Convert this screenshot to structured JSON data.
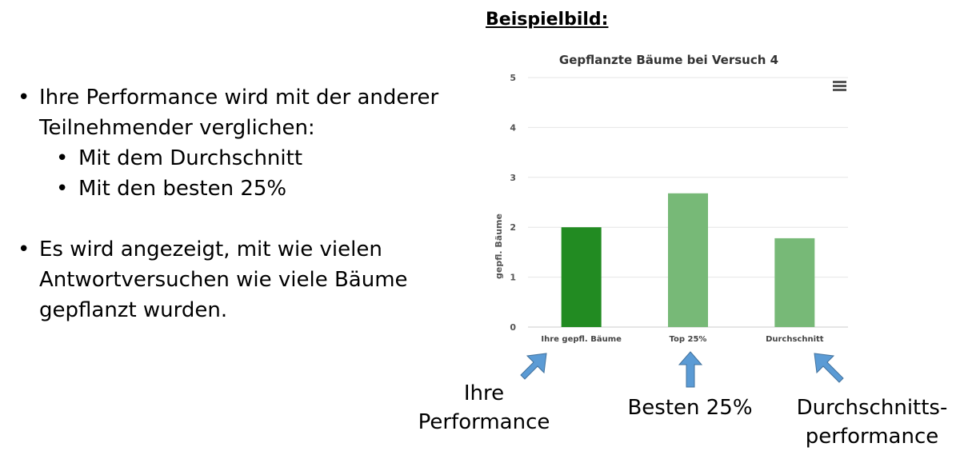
{
  "bullets": {
    "b1_line1": "Ihre Performance wird mit der anderer",
    "b1_line2": "Teilnehmender verglichen:",
    "sub1": "Mit dem Durchschnitt",
    "sub2": "Mit den besten 25%",
    "b2_line1": "Es wird angezeigt, mit wie vielen",
    "b2_line2": "Antwortversuchen wie viele Bäume",
    "b2_line3": "gepflanzt wurden.",
    "dot": "•"
  },
  "heading": "Beispielbild:",
  "chart_data": {
    "type": "bar",
    "title": "Gepflanzte Bäume bei Versuch 4",
    "ylabel": "gepfl. Bäume",
    "xlabel": "",
    "categories": [
      "Ihre gepfl. Bäume",
      "Top 25%",
      "Durchschnitt"
    ],
    "values": [
      2,
      2.68,
      1.78
    ],
    "colors": [
      "#228b22",
      "#77b977",
      "#77b977"
    ],
    "ylim": [
      0,
      5
    ],
    "yticks": [
      0,
      1,
      2,
      3,
      4,
      5
    ],
    "grid": true,
    "legend": "none"
  },
  "menu_icon": "hamburger-menu-icon",
  "annotations": {
    "ihre_line1": "Ihre",
    "ihre_line2": "Performance",
    "besten": "Besten 25%",
    "durch_line1": "Durchschnitts-",
    "durch_line2": "performance",
    "arrow_color": "#5b9bd5"
  }
}
